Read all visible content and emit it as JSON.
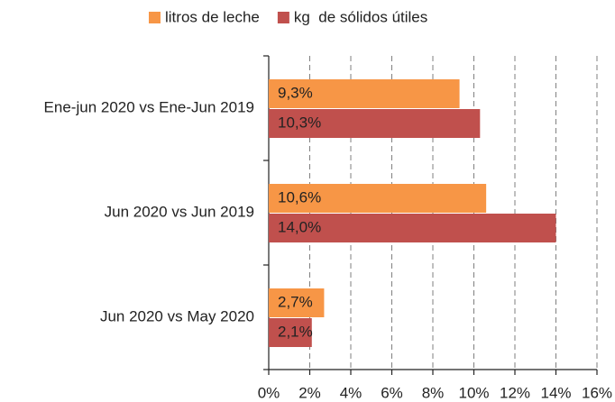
{
  "chart_data": {
    "type": "hbar",
    "categories": [
      "Ene-jun 2020 vs Ene-Jun 2019",
      "Jun 2020 vs Jun 2019",
      "Jun 2020 vs May 2020"
    ],
    "series": [
      {
        "name": "litros de leche",
        "color": "#f79646",
        "values": [
          9.3,
          10.6,
          2.7
        ],
        "value_labels": [
          "9,3%",
          "10,6%",
          "2,7%"
        ]
      },
      {
        "name": "kg  de sólidos útiles",
        "color": "#c0504d",
        "values": [
          10.3,
          14.0,
          2.1
        ],
        "value_labels": [
          "10,3%",
          "14,0%",
          "2,1%"
        ]
      }
    ],
    "xlim": [
      0,
      16
    ],
    "xticks": [
      {
        "value": 0,
        "label": "0%"
      },
      {
        "value": 2,
        "label": "2%"
      },
      {
        "value": 4,
        "label": "4%"
      },
      {
        "value": 6,
        "label": "6%"
      },
      {
        "value": 8,
        "label": "8%"
      },
      {
        "value": 10,
        "label": "10%"
      },
      {
        "value": 12,
        "label": "12%"
      },
      {
        "value": 14,
        "label": "14%"
      },
      {
        "value": 16,
        "label": "16%"
      }
    ],
    "grid": true,
    "legend": "top"
  }
}
